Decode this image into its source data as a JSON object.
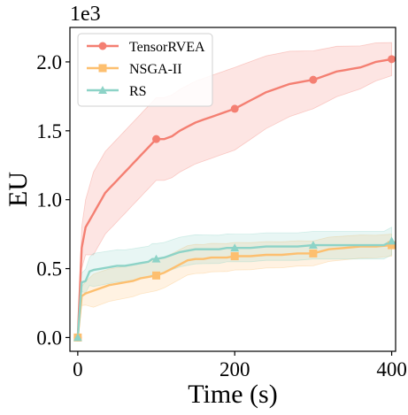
{
  "chart_data": {
    "type": "line",
    "xlabel": "Time (s)",
    "ylabel": "EU",
    "y_offset_label": "1e3",
    "xlim": [
      -10,
      405
    ],
    "ylim": [
      -0.1,
      2.25
    ],
    "x_ticks": [
      0,
      200,
      400
    ],
    "x_tick_labels": [
      "0",
      "200",
      "400"
    ],
    "y_ticks": [
      0.0,
      0.5,
      1.0,
      1.5,
      2.0
    ],
    "y_tick_labels": [
      "0.0",
      "0.5",
      "1.0",
      "1.5",
      "2.0"
    ],
    "grid": false,
    "legend": "top-left",
    "series": [
      {
        "name": "TensorRVEA",
        "color": "#f47f72",
        "marker": "circle",
        "points": [
          [
            0,
            0.0
          ],
          [
            5,
            0.65
          ],
          [
            10,
            0.8
          ],
          [
            15,
            0.85
          ],
          [
            20,
            0.9
          ],
          [
            25,
            0.95
          ],
          [
            30,
            1.0
          ],
          [
            35,
            1.05
          ],
          [
            40,
            1.08
          ],
          [
            45,
            1.11
          ],
          [
            50,
            1.14
          ],
          [
            55,
            1.17
          ],
          [
            60,
            1.2
          ],
          [
            65,
            1.23
          ],
          [
            70,
            1.26
          ],
          [
            75,
            1.29
          ],
          [
            80,
            1.32
          ],
          [
            85,
            1.35
          ],
          [
            90,
            1.38
          ],
          [
            95,
            1.41
          ],
          [
            100,
            1.44
          ],
          [
            110,
            1.44
          ],
          [
            120,
            1.46
          ],
          [
            130,
            1.5
          ],
          [
            140,
            1.53
          ],
          [
            150,
            1.56
          ],
          [
            160,
            1.58
          ],
          [
            170,
            1.6
          ],
          [
            180,
            1.62
          ],
          [
            190,
            1.64
          ],
          [
            200,
            1.66
          ],
          [
            210,
            1.69
          ],
          [
            220,
            1.72
          ],
          [
            230,
            1.75
          ],
          [
            240,
            1.78
          ],
          [
            250,
            1.8
          ],
          [
            260,
            1.82
          ],
          [
            270,
            1.84
          ],
          [
            280,
            1.85
          ],
          [
            290,
            1.86
          ],
          [
            300,
            1.87
          ],
          [
            310,
            1.89
          ],
          [
            320,
            1.91
          ],
          [
            330,
            1.93
          ],
          [
            340,
            1.94
          ],
          [
            350,
            1.95
          ],
          [
            360,
            1.96
          ],
          [
            370,
            1.98
          ],
          [
            380,
            2.0
          ],
          [
            390,
            2.01
          ],
          [
            400,
            2.02
          ]
        ],
        "band": [
          0.1,
          0.3,
          0.3,
          0.12
        ],
        "marker_points": [
          [
            0,
            0.0
          ],
          [
            100,
            1.44
          ],
          [
            200,
            1.66
          ],
          [
            300,
            1.87
          ],
          [
            400,
            2.02
          ]
        ]
      },
      {
        "name": "NSGA-II",
        "color": "#fdbf6f",
        "marker": "square",
        "points": [
          [
            0,
            0.0
          ],
          [
            5,
            0.3
          ],
          [
            10,
            0.32
          ],
          [
            20,
            0.34
          ],
          [
            30,
            0.36
          ],
          [
            40,
            0.38
          ],
          [
            50,
            0.39
          ],
          [
            60,
            0.4
          ],
          [
            70,
            0.41
          ],
          [
            80,
            0.43
          ],
          [
            90,
            0.44
          ],
          [
            100,
            0.45
          ],
          [
            110,
            0.47
          ],
          [
            120,
            0.5
          ],
          [
            130,
            0.53
          ],
          [
            140,
            0.56
          ],
          [
            150,
            0.57
          ],
          [
            160,
            0.57
          ],
          [
            170,
            0.58
          ],
          [
            180,
            0.58
          ],
          [
            190,
            0.58
          ],
          [
            200,
            0.59
          ],
          [
            220,
            0.59
          ],
          [
            240,
            0.6
          ],
          [
            260,
            0.6
          ],
          [
            280,
            0.61
          ],
          [
            300,
            0.61
          ],
          [
            320,
            0.64
          ],
          [
            340,
            0.65
          ],
          [
            360,
            0.66
          ],
          [
            380,
            0.66
          ],
          [
            400,
            0.67
          ]
        ],
        "band": [
          0.05,
          0.12,
          0.1,
          0.08
        ],
        "marker_points": [
          [
            0,
            0.0
          ],
          [
            100,
            0.45
          ],
          [
            200,
            0.59
          ],
          [
            300,
            0.61
          ],
          [
            400,
            0.67
          ]
        ]
      },
      {
        "name": "RS",
        "color": "#8dd3c7",
        "marker": "triangle",
        "points": [
          [
            0,
            0.0
          ],
          [
            5,
            0.4
          ],
          [
            10,
            0.41
          ],
          [
            15,
            0.48
          ],
          [
            20,
            0.49
          ],
          [
            30,
            0.5
          ],
          [
            40,
            0.51
          ],
          [
            50,
            0.52
          ],
          [
            60,
            0.52
          ],
          [
            70,
            0.53
          ],
          [
            80,
            0.54
          ],
          [
            90,
            0.55
          ],
          [
            95,
            0.57
          ],
          [
            100,
            0.57
          ],
          [
            110,
            0.58
          ],
          [
            120,
            0.6
          ],
          [
            130,
            0.62
          ],
          [
            140,
            0.63
          ],
          [
            150,
            0.64
          ],
          [
            160,
            0.64
          ],
          [
            170,
            0.64
          ],
          [
            180,
            0.64
          ],
          [
            190,
            0.65
          ],
          [
            200,
            0.65
          ],
          [
            220,
            0.65
          ],
          [
            240,
            0.66
          ],
          [
            260,
            0.66
          ],
          [
            280,
            0.66
          ],
          [
            300,
            0.67
          ],
          [
            320,
            0.67
          ],
          [
            340,
            0.67
          ],
          [
            360,
            0.67
          ],
          [
            380,
            0.67
          ],
          [
            390,
            0.67
          ],
          [
            400,
            0.7
          ]
        ],
        "band": [
          0.05,
          0.12,
          0.1,
          0.1
        ],
        "marker_points": [
          [
            0,
            0.0
          ],
          [
            100,
            0.57
          ],
          [
            200,
            0.65
          ],
          [
            300,
            0.67
          ],
          [
            400,
            0.7
          ]
        ]
      }
    ]
  }
}
